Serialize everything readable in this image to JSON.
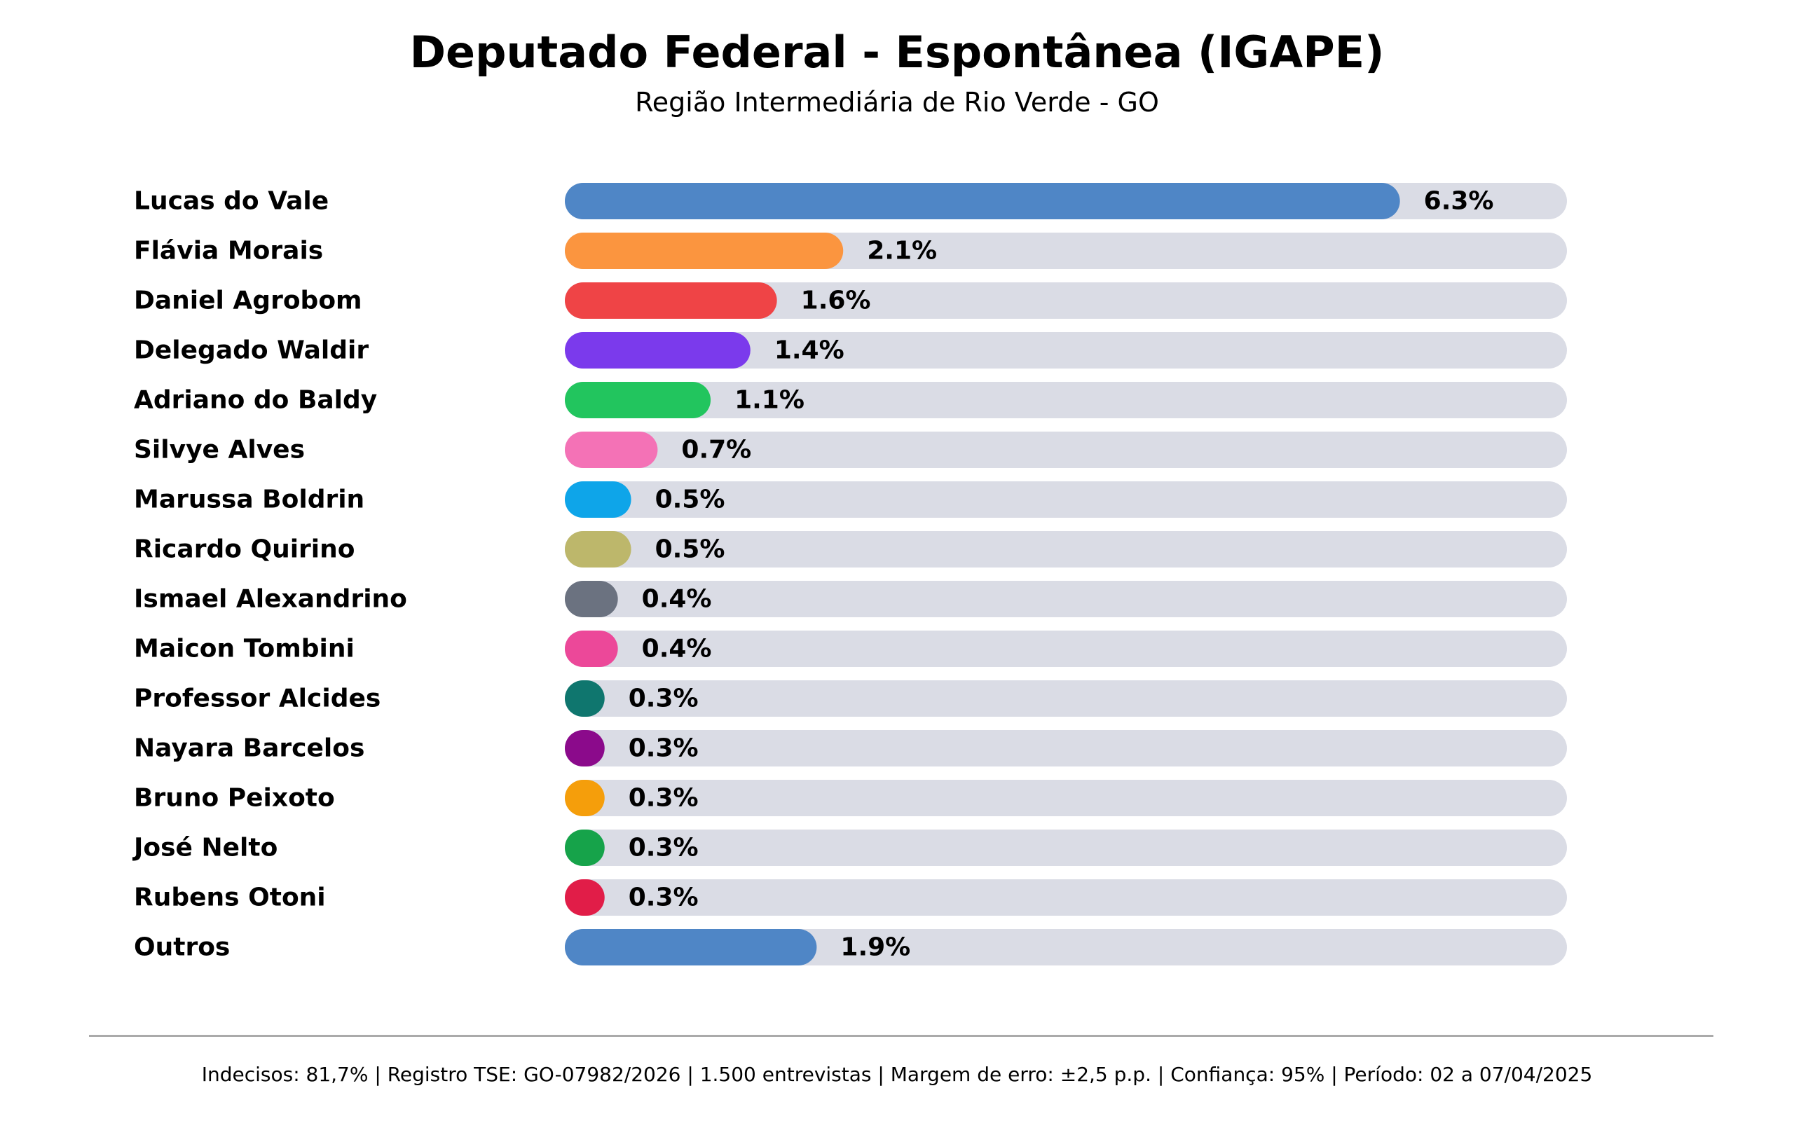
{
  "chart_data": {
    "type": "bar",
    "orientation": "horizontal",
    "title": "Deputado Federal - Espontânea (IGAPE)",
    "subtitle": "Região Intermediária de Rio Verde - GO",
    "xlabel": "",
    "ylabel": "",
    "unit": "%",
    "xlim": [
      0,
      7.56
    ],
    "grid": false,
    "legend": "none",
    "track_color": "#dadce5",
    "categories": [
      "Lucas do Vale",
      "Flávia Morais",
      "Daniel Agrobom",
      "Delegado Waldir",
      "Adriano do Baldy",
      "Silvye Alves",
      "Marussa Boldrin",
      "Ricardo Quirino",
      "Ismael Alexandrino",
      "Maicon Tombini",
      "Professor Alcides",
      "Nayara Barcelos",
      "Bruno Peixoto",
      "José Nelto",
      "Rubens Otoni",
      "Outros"
    ],
    "values": [
      6.3,
      2.1,
      1.6,
      1.4,
      1.1,
      0.7,
      0.5,
      0.5,
      0.4,
      0.4,
      0.3,
      0.3,
      0.3,
      0.3,
      0.3,
      1.9
    ],
    "labels": [
      "6.3%",
      "2.1%",
      "1.6%",
      "1.4%",
      "1.1%",
      "0.7%",
      "0.5%",
      "0.5%",
      "0.4%",
      "0.4%",
      "0.3%",
      "0.3%",
      "0.3%",
      "0.3%",
      "0.3%",
      "1.9%"
    ],
    "colors": [
      "#4f86c6",
      "#fb953f",
      "#ef4446",
      "#7b3aec",
      "#22c55e",
      "#f472b6",
      "#0ea5e9",
      "#bdb76b",
      "#6b7280",
      "#ec4899",
      "#0f766e",
      "#8b0a8b",
      "#f59e0b",
      "#16a34a",
      "#e11d48",
      "#4f86c6"
    ]
  },
  "footer": {
    "text": "Indecisos: 81,7% | Registro TSE: GO-07982/2026 | 1.500 entrevistas | Margem de erro: ±2,5 p.p. | Confiança: 95% | Período: 02 a 07/04/2025"
  }
}
